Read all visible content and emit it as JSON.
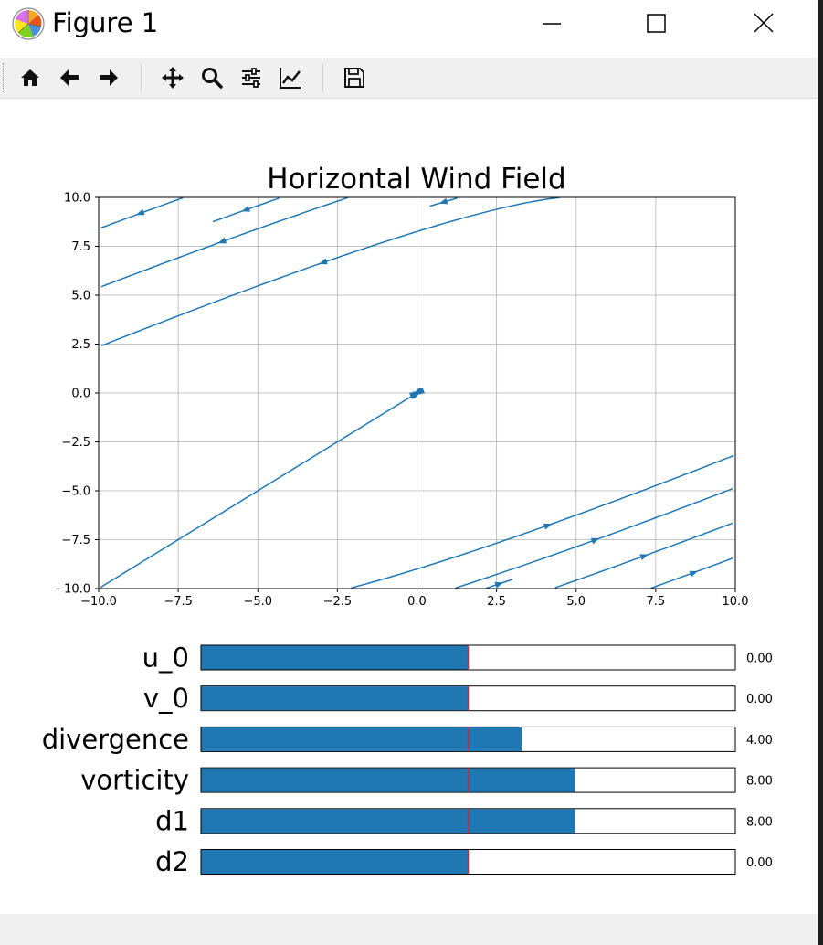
{
  "window": {
    "title": "Figure 1",
    "icons": {
      "app": "matplotlib-logo-icon",
      "minimize": "minimize-icon",
      "maximize": "maximize-icon",
      "close": "close-icon"
    }
  },
  "toolbar": {
    "buttons": [
      {
        "name": "home-icon",
        "tooltip": ""
      },
      {
        "name": "back-arrow-icon",
        "tooltip": ""
      },
      {
        "name": "forward-arrow-icon",
        "tooltip": ""
      },
      {
        "name": "pan-move-icon",
        "tooltip": ""
      },
      {
        "name": "zoom-magnifier-icon",
        "tooltip": ""
      },
      {
        "name": "configure-subplots-icon",
        "tooltip": ""
      },
      {
        "name": "edit-axis-curve-icon",
        "tooltip": ""
      },
      {
        "name": "save-floppy-icon",
        "tooltip": ""
      }
    ]
  },
  "chart_data": {
    "type": "streamplot",
    "title": "Horizontal Wind Field",
    "xlabel": "",
    "ylabel": "",
    "xlim": [
      -10,
      10
    ],
    "ylim": [
      -10,
      10
    ],
    "xticks": [
      "−10.0",
      "−7.5",
      "−5.0",
      "−2.5",
      "0.0",
      "2.5",
      "5.0",
      "7.5",
      "10.0"
    ],
    "yticks": [
      "−10.0",
      "−7.5",
      "−5.0",
      "−2.5",
      "0.0",
      "2.5",
      "5.0",
      "7.5",
      "10.0"
    ],
    "grid": true,
    "line_color": "#1f77b4",
    "field": {
      "u_0": 0.0,
      "v_0": 0.0,
      "divergence": 4.0,
      "vorticity": 8.0,
      "d1": 8.0,
      "d2": 0.0
    }
  },
  "sliders": [
    {
      "label": "u_0",
      "value": 0.0,
      "display": "0.00",
      "min": -10,
      "max": 10,
      "init": 0
    },
    {
      "label": "v_0",
      "value": 0.0,
      "display": "0.00",
      "min": -10,
      "max": 10,
      "init": 0
    },
    {
      "label": "divergence",
      "value": 4.0,
      "display": "4.00",
      "min": -20,
      "max": 20,
      "init": 0
    },
    {
      "label": "vorticity",
      "value": 8.0,
      "display": "8.00",
      "min": -20,
      "max": 20,
      "init": 0
    },
    {
      "label": "d1",
      "value": 8.0,
      "display": "8.00",
      "min": -20,
      "max": 20,
      "init": 0
    },
    {
      "label": "d2",
      "value": 0.0,
      "display": "0.00",
      "min": -20,
      "max": 20,
      "init": 0
    }
  ],
  "colors": {
    "slider_fill": "#1f77b4",
    "init_marker": "#d62728",
    "toolbar_bg": "#f0f0f0"
  }
}
